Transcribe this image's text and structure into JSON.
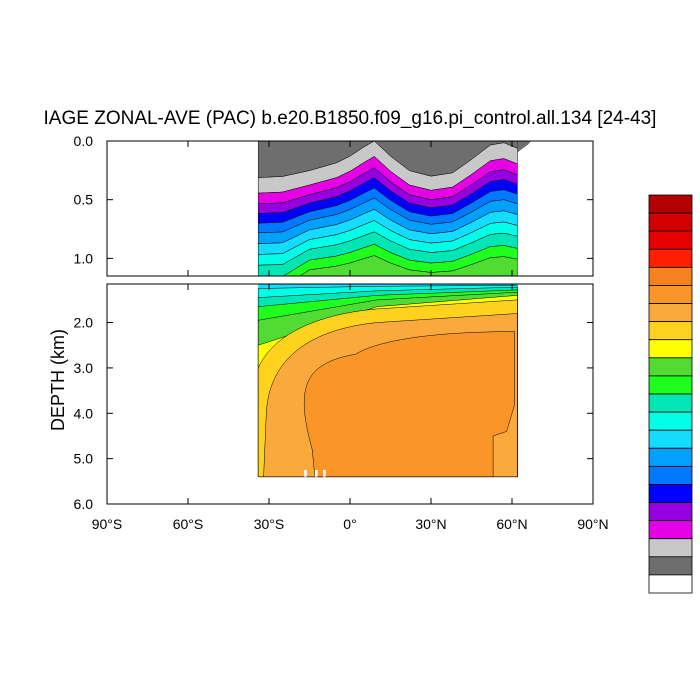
{
  "chart_data": {
    "type": "heatmap",
    "title": "IAGE ZONAL-AVE (PAC) b.e20.B1850.f09_g16.pi_control.all.134 [24-43]",
    "xlabel": "",
    "ylabel": "DEPTH (km)",
    "x_range": [
      -90,
      90
    ],
    "y_range_upper": [
      0.0,
      1.15
    ],
    "y_range_lower": [
      1.15,
      6.0
    ],
    "y_ticks_upper": [
      "0.0",
      "0.5",
      "1.0"
    ],
    "y_ticks_lower": [
      "2.0",
      "3.0",
      "4.0",
      "5.0",
      "6.0"
    ],
    "x_ticks": [
      "90°S",
      "60°S",
      "30°S",
      "0°",
      "30°N",
      "60°N",
      "90°N"
    ],
    "data_extent_lat": [
      -34,
      62
    ],
    "data_extent_depth_max": 5.4,
    "colorbar": {
      "orientation": "vertical",
      "placement": "right",
      "colors_top_to_bottom": [
        "#b40000",
        "#d20000",
        "#e60000",
        "#ff1e00",
        "#f5821e",
        "#fa9628",
        "#faaa3c",
        "#ffd21e",
        "#ffff00",
        "#50dc32",
        "#1eff1e",
        "#00e6b4",
        "#00ffe6",
        "#14dcff",
        "#00a0ff",
        "#0078ff",
        "#0000ff",
        "#9600e1",
        "#e600e6",
        "#c8c8c8",
        "#6e6e6e",
        "#ffffff"
      ]
    },
    "contour_bands_top_to_bottom": [
      "#6e6e6e",
      "#c8c8c8",
      "#e600e6",
      "#9600e1",
      "#0000ff",
      "#0078ff",
      "#00a0ff",
      "#14dcff",
      "#00ffe6",
      "#00e6b4",
      "#1eff1e",
      "#50dc32",
      "#ffff00",
      "#ffd21e",
      "#faaa3c",
      "#fa9628"
    ]
  }
}
